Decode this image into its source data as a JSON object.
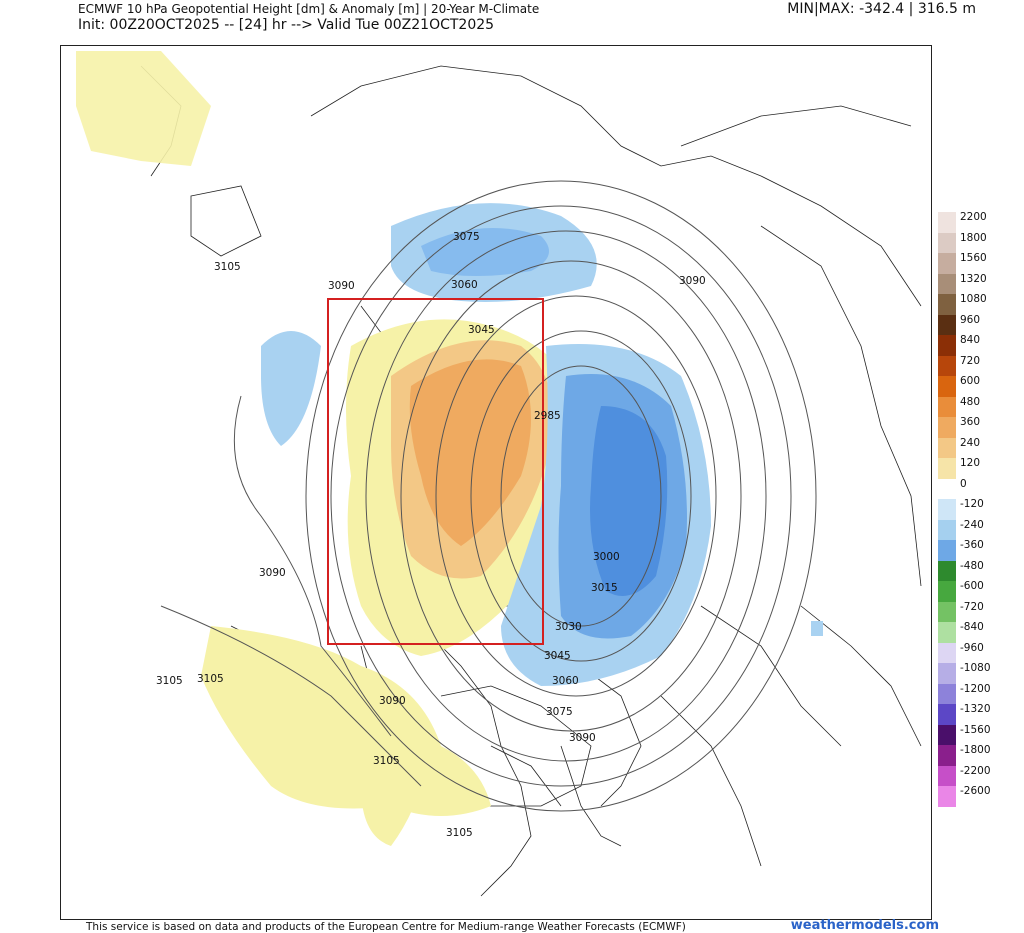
{
  "header": {
    "title_line1": "ECMWF 10 hPa Geopotential Height [dm] & Anomaly [m] | 20-Year M-Climate",
    "title_line2": "Init: 00Z20OCT2025 -- [24] hr --> Valid Tue 00Z21OCT2025",
    "minmax": "MIN|MAX: -342.4 | 316.5 m"
  },
  "footer": {
    "attribution": "This service is based on data and products of the European Centre for Medium-range Weather Forecasts (ECMWF)",
    "brand": "weathermodels.com"
  },
  "map": {
    "contour_labels": [
      "3105",
      "3075",
      "3090",
      "3060",
      "3045",
      "2985",
      "3000",
      "3015",
      "3030",
      "3045",
      "3060",
      "3075",
      "3090",
      "3090",
      "3090",
      "3105",
      "3105",
      "3090",
      "3105",
      "3105",
      "3105"
    ],
    "highlight_box_color": "#d42020"
  },
  "legend": {
    "labels": [
      "2200",
      "1800",
      "1560",
      "1320",
      "1080",
      "960",
      "840",
      "720",
      "600",
      "480",
      "360",
      "240",
      "120",
      "0",
      "-120",
      "-240",
      "-360",
      "-480",
      "-600",
      "-720",
      "-840",
      "-960",
      "-1080",
      "-1200",
      "-1320",
      "-1560",
      "-1800",
      "-2200",
      "-2600"
    ],
    "colors": [
      "#efe3df",
      "#dccbc4",
      "#c6ad9f",
      "#a88e78",
      "#7f6140",
      "#5a2f12",
      "#8b2f06",
      "#b7460b",
      "#d9650f",
      "#e98d3a",
      "#efaa60",
      "#f3c886",
      "#f6e4a8",
      "#ffffff",
      "#cfe6f7",
      "#a5d0ef",
      "#6ea8e6",
      "#2e8a2e",
      "#47a83f",
      "#74c264",
      "#aee0a1",
      "#ddd6f3",
      "#b6aee6",
      "#8d82da",
      "#5c47c6",
      "#4a0f6a",
      "#8a1f8c",
      "#c64fc8",
      "#ea86e7"
    ]
  }
}
